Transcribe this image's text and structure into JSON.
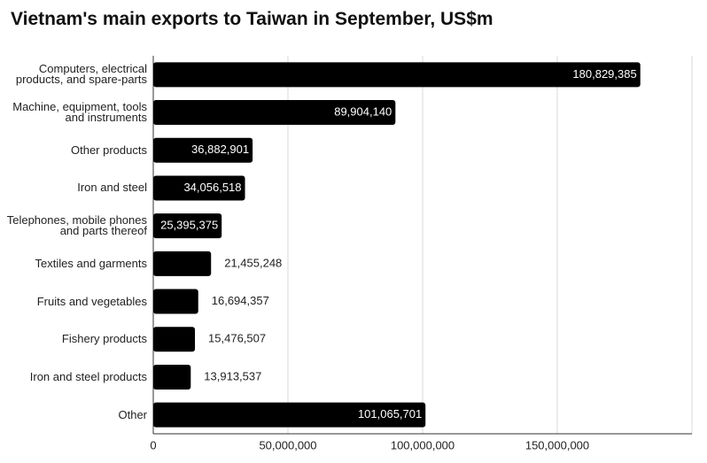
{
  "chart_data": {
    "type": "bar",
    "orientation": "horizontal",
    "title": "Vietnam's main exports to Taiwan in September, US$m",
    "categories": [
      "Computers, electrical products, and spare-parts",
      "Machine, equipment, tools and instruments",
      "Other products",
      "Iron and steel",
      "Telephones, mobile phones and parts thereof",
      "Textiles and garments",
      "Fruits and vegetables",
      "Fishery products",
      "Iron and steel products",
      "Other"
    ],
    "values": [
      180829385,
      89904140,
      36882901,
      34056518,
      25395375,
      21455248,
      16694357,
      15476507,
      13913537,
      101065701
    ],
    "value_labels": [
      "180,829,385",
      "89,904,140",
      "36,882,901",
      "34,056,518",
      "25,395,375",
      "21,455,248",
      "16,694,357",
      "15,476,507",
      "13,913,537",
      "101,065,701"
    ],
    "color": "#000000",
    "xlim": [
      0,
      200000000
    ],
    "xticks": [
      0,
      {
        "value": 50000000,
        "label": "50,000,000"
      },
      {
        "value": 100000000,
        "label": "100,000,000"
      },
      {
        "value": 150000000,
        "label": "150,000,000"
      }
    ],
    "grid": true
  }
}
